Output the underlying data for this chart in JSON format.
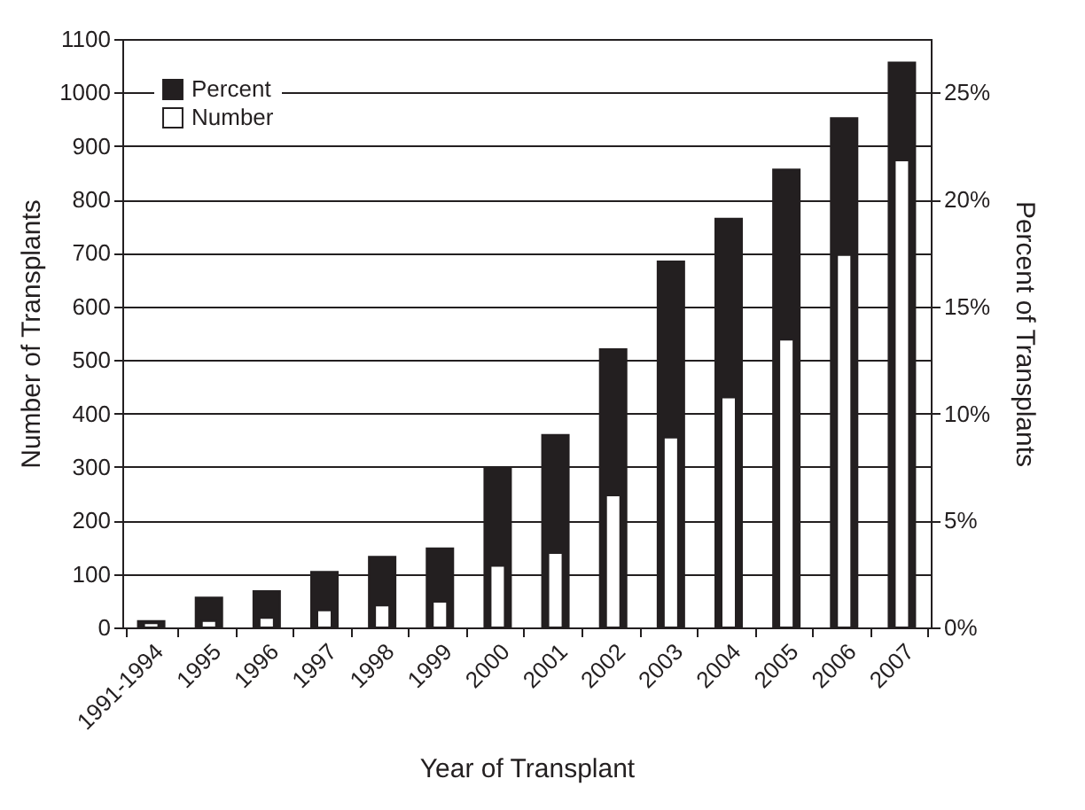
{
  "chart_data": {
    "type": "bar",
    "xlabel": "Year of Transplant",
    "ylabel": "Number of Transplants",
    "y2label": "Percent of Transplants",
    "categories": [
      "1991-1994",
      "1995",
      "1996",
      "1997",
      "1998",
      "1999",
      "2000",
      "2001",
      "2002",
      "2003",
      "2004",
      "2005",
      "2006",
      "2007"
    ],
    "series": [
      {
        "name": "Percent",
        "color": "#231f20",
        "axis": "y2",
        "values": [
          0.3,
          1.4,
          1.7,
          2.6,
          3.3,
          3.7,
          7.5,
          9.0,
          13.0,
          17.1,
          19.1,
          21.4,
          23.8,
          26.4
        ]
      },
      {
        "name": "Number",
        "color": "#ffffff",
        "values": [
          8,
          12,
          18,
          32,
          41,
          48,
          115,
          139,
          247,
          355,
          430,
          538,
          696,
          873
        ]
      }
    ],
    "ylim": [
      0,
      1100
    ],
    "yticks": [
      0,
      100,
      200,
      300,
      400,
      500,
      600,
      700,
      800,
      900,
      1000,
      1100
    ],
    "y2lim": [
      0,
      27.5
    ],
    "y2ticks": [
      {
        "value": 0,
        "label": "0%"
      },
      {
        "value": 5,
        "label": "5%"
      },
      {
        "value": 10,
        "label": "10%"
      },
      {
        "value": 15,
        "label": "15%"
      },
      {
        "value": 20,
        "label": "20%"
      },
      {
        "value": 25,
        "label": "25%"
      }
    ],
    "grid": "y",
    "legend": "top left"
  }
}
